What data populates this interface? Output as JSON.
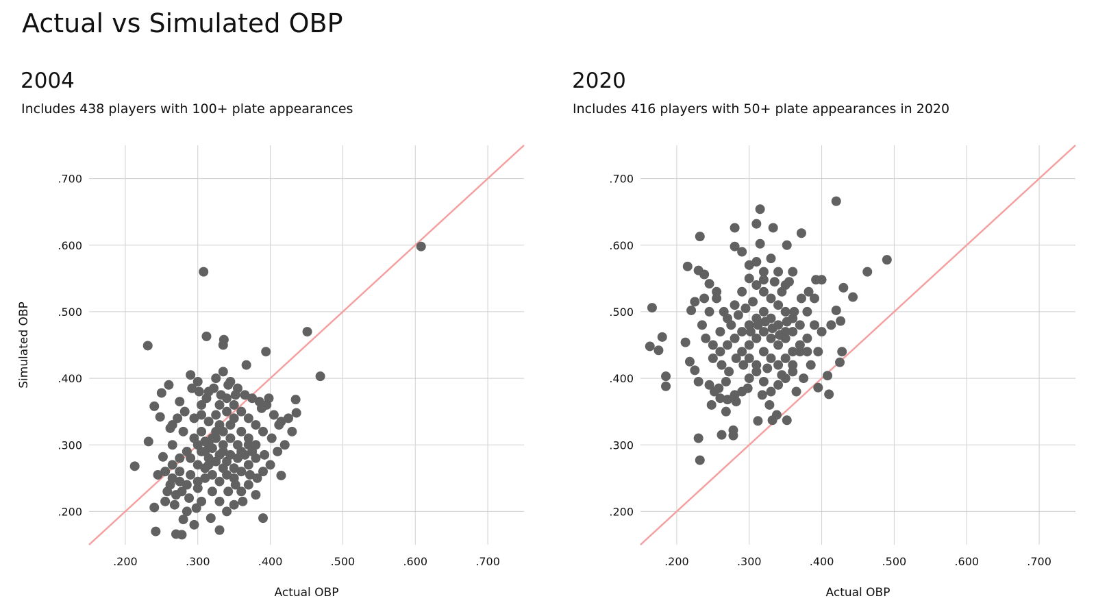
{
  "title": "Actual vs Simulated OBP",
  "colors": {
    "points": "#616161",
    "reference_line": "#f5a0a0",
    "grid": "#cfcfcf"
  },
  "chart_data": [
    {
      "type": "scatter",
      "title": "2004",
      "subtitle": "Includes 438 players with 100+ plate appearances",
      "xlabel": "Actual OBP",
      "ylabel": "Simulated OBP",
      "xlim": [
        0.15,
        0.75
      ],
      "ylim": [
        0.15,
        0.75
      ],
      "xticks": [
        0.2,
        0.3,
        0.4,
        0.5,
        0.6,
        0.7
      ],
      "yticks": [
        0.2,
        0.3,
        0.4,
        0.5,
        0.6,
        0.7
      ],
      "xtick_labels": [
        ".200",
        ".300",
        ".400",
        ".500",
        ".600",
        ".700"
      ],
      "ytick_labels": [
        ".200",
        ".300",
        ".400",
        ".500",
        ".600",
        ".700"
      ],
      "reference_line": "y = x",
      "points": [
        [
          0.608,
          0.598
        ],
        [
          0.308,
          0.56
        ],
        [
          0.451,
          0.47
        ],
        [
          0.469,
          0.403
        ],
        [
          0.231,
          0.449
        ],
        [
          0.336,
          0.458
        ],
        [
          0.335,
          0.45
        ],
        [
          0.394,
          0.44
        ],
        [
          0.312,
          0.463
        ],
        [
          0.367,
          0.42
        ],
        [
          0.213,
          0.268
        ],
        [
          0.232,
          0.305
        ],
        [
          0.26,
          0.39
        ],
        [
          0.24,
          0.358
        ],
        [
          0.25,
          0.378
        ],
        [
          0.248,
          0.342
        ],
        [
          0.265,
          0.33
        ],
        [
          0.275,
          0.365
        ],
        [
          0.29,
          0.405
        ],
        [
          0.3,
          0.395
        ],
        [
          0.242,
          0.17
        ],
        [
          0.27,
          0.166
        ],
        [
          0.278,
          0.165
        ],
        [
          0.24,
          0.206
        ],
        [
          0.255,
          0.215
        ],
        [
          0.28,
          0.188
        ],
        [
          0.295,
          0.18
        ],
        [
          0.305,
          0.215
        ],
        [
          0.318,
          0.19
        ],
        [
          0.33,
          0.172
        ],
        [
          0.245,
          0.255
        ],
        [
          0.252,
          0.282
        ],
        [
          0.262,
          0.24
        ],
        [
          0.27,
          0.225
        ],
        [
          0.285,
          0.2
        ],
        [
          0.3,
          0.235
        ],
        [
          0.275,
          0.26
        ],
        [
          0.29,
          0.28
        ],
        [
          0.265,
          0.3
        ],
        [
          0.28,
          0.32
        ],
        [
          0.295,
          0.34
        ],
        [
          0.305,
          0.36
        ],
        [
          0.315,
          0.38
        ],
        [
          0.325,
          0.4
        ],
        [
          0.335,
          0.41
        ],
        [
          0.345,
          0.395
        ],
        [
          0.355,
          0.385
        ],
        [
          0.365,
          0.375
        ],
        [
          0.375,
          0.37
        ],
        [
          0.385,
          0.365
        ],
        [
          0.395,
          0.36
        ],
        [
          0.405,
          0.345
        ],
        [
          0.415,
          0.335
        ],
        [
          0.425,
          0.34
        ],
        [
          0.435,
          0.368
        ],
        [
          0.436,
          0.348
        ],
        [
          0.43,
          0.32
        ],
        [
          0.42,
          0.3
        ],
        [
          0.41,
          0.29
        ],
        [
          0.4,
          0.27
        ],
        [
          0.39,
          0.19
        ],
        [
          0.415,
          0.254
        ],
        [
          0.38,
          0.225
        ],
        [
          0.37,
          0.24
        ],
        [
          0.36,
          0.23
        ],
        [
          0.35,
          0.21
        ],
        [
          0.34,
          0.2
        ],
        [
          0.33,
          0.215
        ],
        [
          0.32,
          0.23
        ],
        [
          0.31,
          0.25
        ],
        [
          0.3,
          0.27
        ],
        [
          0.31,
          0.29
        ],
        [
          0.32,
          0.31
        ],
        [
          0.33,
          0.33
        ],
        [
          0.34,
          0.35
        ],
        [
          0.35,
          0.34
        ],
        [
          0.36,
          0.32
        ],
        [
          0.37,
          0.3
        ],
        [
          0.38,
          0.28
        ],
        [
          0.39,
          0.26
        ],
        [
          0.3,
          0.3
        ],
        [
          0.31,
          0.305
        ],
        [
          0.32,
          0.295
        ],
        [
          0.33,
          0.285
        ],
        [
          0.34,
          0.275
        ],
        [
          0.35,
          0.265
        ],
        [
          0.36,
          0.29
        ],
        [
          0.37,
          0.31
        ],
        [
          0.325,
          0.32
        ],
        [
          0.335,
          0.3
        ],
        [
          0.345,
          0.31
        ],
        [
          0.355,
          0.3
        ],
        [
          0.315,
          0.28
        ],
        [
          0.305,
          0.32
        ],
        [
          0.295,
          0.31
        ],
        [
          0.285,
          0.29
        ],
        [
          0.275,
          0.28
        ],
        [
          0.265,
          0.27
        ],
        [
          0.255,
          0.26
        ],
        [
          0.29,
          0.255
        ],
        [
          0.3,
          0.245
        ],
        [
          0.31,
          0.265
        ],
        [
          0.32,
          0.255
        ],
        [
          0.33,
          0.245
        ],
        [
          0.34,
          0.255
        ],
        [
          0.35,
          0.25
        ],
        [
          0.36,
          0.26
        ],
        [
          0.37,
          0.27
        ],
        [
          0.38,
          0.3
        ],
        [
          0.39,
          0.32
        ],
        [
          0.33,
          0.36
        ],
        [
          0.34,
          0.37
        ],
        [
          0.35,
          0.36
        ],
        [
          0.36,
          0.35
        ],
        [
          0.37,
          0.34
        ],
        [
          0.38,
          0.33
        ],
        [
          0.325,
          0.345
        ],
        [
          0.315,
          0.335
        ],
        [
          0.305,
          0.345
        ],
        [
          0.345,
          0.33
        ],
        [
          0.335,
          0.32
        ],
        [
          0.325,
          0.31
        ],
        [
          0.315,
          0.3
        ],
        [
          0.305,
          0.29
        ],
        [
          0.335,
          0.29
        ],
        [
          0.345,
          0.285
        ],
        [
          0.355,
          0.28
        ],
        [
          0.365,
          0.285
        ],
        [
          0.375,
          0.29
        ],
        [
          0.335,
          0.265
        ],
        [
          0.325,
          0.275
        ],
        [
          0.315,
          0.27
        ],
        [
          0.285,
          0.24
        ],
        [
          0.275,
          0.245
        ],
        [
          0.265,
          0.25
        ],
        [
          0.258,
          0.23
        ],
        [
          0.268,
          0.21
        ],
        [
          0.278,
          0.23
        ],
        [
          0.288,
          0.22
        ],
        [
          0.298,
          0.205
        ],
        [
          0.342,
          0.23
        ],
        [
          0.352,
          0.24
        ],
        [
          0.362,
          0.215
        ],
        [
          0.372,
          0.255
        ],
        [
          0.382,
          0.25
        ],
        [
          0.392,
          0.285
        ],
        [
          0.402,
          0.31
        ],
        [
          0.412,
          0.33
        ],
        [
          0.398,
          0.37
        ],
        [
          0.388,
          0.355
        ],
        [
          0.322,
          0.385
        ],
        [
          0.332,
          0.375
        ],
        [
          0.342,
          0.39
        ],
        [
          0.352,
          0.375
        ],
        [
          0.312,
          0.37
        ],
        [
          0.302,
          0.38
        ],
        [
          0.292,
          0.385
        ],
        [
          0.282,
          0.35
        ],
        [
          0.272,
          0.34
        ],
        [
          0.262,
          0.325
        ]
      ]
    },
    {
      "type": "scatter",
      "title": "2020",
      "subtitle": "Includes 416 players with 50+ plate appearances in 2020",
      "xlabel": "Actual OBP",
      "ylabel": "",
      "xlim": [
        0.15,
        0.75
      ],
      "ylim": [
        0.15,
        0.75
      ],
      "xticks": [
        0.2,
        0.3,
        0.4,
        0.5,
        0.6,
        0.7
      ],
      "yticks": [
        0.2,
        0.3,
        0.4,
        0.5,
        0.6,
        0.7
      ],
      "xtick_labels": [
        ".200",
        ".300",
        ".400",
        ".500",
        ".600",
        ".700"
      ],
      "ytick_labels": [
        ".200",
        ".300",
        ".400",
        ".500",
        ".600",
        ".700"
      ],
      "reference_line": "y = x",
      "points": [
        [
          0.42,
          0.666
        ],
        [
          0.315,
          0.654
        ],
        [
          0.31,
          0.632
        ],
        [
          0.28,
          0.626
        ],
        [
          0.333,
          0.626
        ],
        [
          0.232,
          0.613
        ],
        [
          0.372,
          0.618
        ],
        [
          0.352,
          0.6
        ],
        [
          0.315,
          0.602
        ],
        [
          0.28,
          0.598
        ],
        [
          0.49,
          0.578
        ],
        [
          0.463,
          0.56
        ],
        [
          0.166,
          0.506
        ],
        [
          0.163,
          0.448
        ],
        [
          0.18,
          0.462
        ],
        [
          0.175,
          0.442
        ],
        [
          0.185,
          0.403
        ],
        [
          0.185,
          0.388
        ],
        [
          0.23,
          0.31
        ],
        [
          0.232,
          0.277
        ],
        [
          0.262,
          0.315
        ],
        [
          0.278,
          0.322
        ],
        [
          0.278,
          0.314
        ],
        [
          0.312,
          0.336
        ],
        [
          0.332,
          0.337
        ],
        [
          0.352,
          0.337
        ],
        [
          0.41,
          0.376
        ],
        [
          0.408,
          0.404
        ],
        [
          0.425,
          0.424
        ],
        [
          0.428,
          0.44
        ],
        [
          0.443,
          0.522
        ],
        [
          0.43,
          0.536
        ],
        [
          0.426,
          0.486
        ],
        [
          0.42,
          0.502
        ],
        [
          0.413,
          0.48
        ],
        [
          0.4,
          0.548
        ],
        [
          0.392,
          0.548
        ],
        [
          0.215,
          0.568
        ],
        [
          0.23,
          0.562
        ],
        [
          0.238,
          0.556
        ],
        [
          0.245,
          0.542
        ],
        [
          0.238,
          0.52
        ],
        [
          0.225,
          0.515
        ],
        [
          0.22,
          0.502
        ],
        [
          0.212,
          0.454
        ],
        [
          0.218,
          0.425
        ],
        [
          0.225,
          0.412
        ],
        [
          0.23,
          0.395
        ],
        [
          0.245,
          0.39
        ],
        [
          0.252,
          0.38
        ],
        [
          0.26,
          0.37
        ],
        [
          0.27,
          0.368
        ],
        [
          0.28,
          0.375
        ],
        [
          0.29,
          0.38
        ],
        [
          0.3,
          0.4
        ],
        [
          0.31,
          0.41
        ],
        [
          0.32,
          0.395
        ],
        [
          0.33,
          0.38
        ],
        [
          0.34,
          0.39
        ],
        [
          0.35,
          0.4
        ],
        [
          0.36,
          0.42
        ],
        [
          0.37,
          0.44
        ],
        [
          0.38,
          0.46
        ],
        [
          0.39,
          0.48
        ],
        [
          0.4,
          0.47
        ],
        [
          0.395,
          0.44
        ],
        [
          0.385,
          0.42
        ],
        [
          0.375,
          0.4
        ],
        [
          0.365,
          0.38
        ],
        [
          0.395,
          0.386
        ],
        [
          0.25,
          0.45
        ],
        [
          0.26,
          0.47
        ],
        [
          0.27,
          0.49
        ],
        [
          0.28,
          0.51
        ],
        [
          0.29,
          0.53
        ],
        [
          0.3,
          0.55
        ],
        [
          0.31,
          0.54
        ],
        [
          0.32,
          0.53
        ],
        [
          0.33,
          0.52
        ],
        [
          0.34,
          0.51
        ],
        [
          0.35,
          0.5
        ],
        [
          0.36,
          0.49
        ],
        [
          0.37,
          0.48
        ],
        [
          0.38,
          0.5
        ],
        [
          0.39,
          0.52
        ],
        [
          0.35,
          0.54
        ],
        [
          0.34,
          0.56
        ],
        [
          0.33,
          0.58
        ],
        [
          0.32,
          0.56
        ],
        [
          0.36,
          0.56
        ],
        [
          0.3,
          0.45
        ],
        [
          0.31,
          0.46
        ],
        [
          0.32,
          0.47
        ],
        [
          0.33,
          0.46
        ],
        [
          0.34,
          0.45
        ],
        [
          0.35,
          0.46
        ],
        [
          0.36,
          0.47
        ],
        [
          0.3,
          0.48
        ],
        [
          0.31,
          0.49
        ],
        [
          0.32,
          0.5
        ],
        [
          0.33,
          0.49
        ],
        [
          0.34,
          0.48
        ],
        [
          0.35,
          0.47
        ],
        [
          0.29,
          0.47
        ],
        [
          0.28,
          0.46
        ],
        [
          0.27,
          0.45
        ],
        [
          0.26,
          0.44
        ],
        [
          0.29,
          0.44
        ],
        [
          0.3,
          0.43
        ],
        [
          0.31,
          0.42
        ],
        [
          0.32,
          0.44
        ],
        [
          0.33,
          0.43
        ],
        [
          0.34,
          0.42
        ],
        [
          0.35,
          0.43
        ],
        [
          0.36,
          0.44
        ],
        [
          0.37,
          0.45
        ],
        [
          0.38,
          0.44
        ],
        [
          0.36,
          0.41
        ],
        [
          0.345,
          0.405
        ],
        [
          0.325,
          0.415
        ],
        [
          0.305,
          0.515
        ],
        [
          0.295,
          0.505
        ],
        [
          0.285,
          0.495
        ],
        [
          0.275,
          0.48
        ],
        [
          0.265,
          0.5
        ],
        [
          0.255,
          0.52
        ],
        [
          0.245,
          0.5
        ],
        [
          0.235,
          0.48
        ],
        [
          0.24,
          0.46
        ],
        [
          0.25,
          0.43
        ],
        [
          0.262,
          0.42
        ],
        [
          0.272,
          0.41
        ],
        [
          0.282,
          0.43
        ],
        [
          0.292,
          0.42
        ],
        [
          0.302,
          0.47
        ],
        [
          0.312,
          0.48
        ],
        [
          0.322,
          0.485
        ],
        [
          0.332,
          0.475
        ],
        [
          0.342,
          0.465
        ],
        [
          0.352,
          0.485
        ],
        [
          0.362,
          0.5
        ],
        [
          0.372,
          0.52
        ],
        [
          0.382,
          0.53
        ],
        [
          0.29,
          0.59
        ],
        [
          0.3,
          0.57
        ],
        [
          0.31,
          0.575
        ],
        [
          0.32,
          0.548
        ],
        [
          0.335,
          0.545
        ],
        [
          0.345,
          0.53
        ],
        [
          0.355,
          0.545
        ],
        [
          0.268,
          0.395
        ],
        [
          0.258,
          0.385
        ],
        [
          0.248,
          0.36
        ],
        [
          0.268,
          0.35
        ],
        [
          0.282,
          0.365
        ],
        [
          0.298,
          0.385
        ],
        [
          0.318,
          0.375
        ],
        [
          0.328,
          0.36
        ],
        [
          0.338,
          0.345
        ],
        [
          0.255,
          0.53
        ]
      ]
    }
  ]
}
